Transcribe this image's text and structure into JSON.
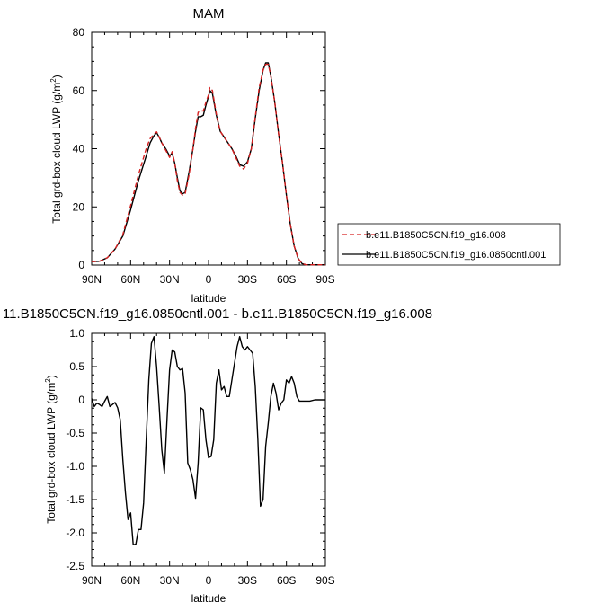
{
  "chart_data": [
    {
      "type": "line",
      "title": "MAM",
      "xlabel": "latitude",
      "ylabel": "Total grd-box cloud LWP (g/m²)",
      "ylabel_main": "Total grd-box cloud LWP (g/m",
      "ylabel_sup": "2",
      "ylabel_close": ")",
      "xlim": [
        90,
        -90
      ],
      "ylim": [
        0,
        80
      ],
      "xticks": [
        90,
        60,
        30,
        0,
        -30,
        -60,
        -90
      ],
      "xtick_labels": [
        "90N",
        "60N",
        "30N",
        "0",
        "30S",
        "60S",
        "90S"
      ],
      "yticks": [
        0,
        20,
        40,
        60,
        80
      ],
      "ytick_labels": [
        "0",
        "20",
        "40",
        "60",
        "80"
      ],
      "grid": false,
      "legend_position": "right",
      "series": [
        {
          "name": "b.e11.B1850C5CN.f19_g16.008",
          "color": "#d62020",
          "dashed": true,
          "points": [
            [
              90,
              1.2
            ],
            [
              84,
              1.3
            ],
            [
              78,
              2.5
            ],
            [
              72,
              5.5
            ],
            [
              66,
              10.5
            ],
            [
              60,
              20.5
            ],
            [
              54,
              31
            ],
            [
              48,
              40
            ],
            [
              45,
              43.5
            ],
            [
              42,
              45
            ],
            [
              40,
              45.8
            ],
            [
              38,
              44
            ],
            [
              36,
              42
            ],
            [
              33,
              39.5
            ],
            [
              30,
              37
            ],
            [
              28,
              39
            ],
            [
              26,
              35
            ],
            [
              24,
              29
            ],
            [
              22,
              25
            ],
            [
              20,
              24
            ],
            [
              18,
              24.5
            ],
            [
              15,
              31
            ],
            [
              12,
              40
            ],
            [
              10,
              47
            ],
            [
              8,
              52.5
            ],
            [
              6,
              53
            ],
            [
              4,
              53
            ],
            [
              2,
              56
            ],
            [
              0,
              58.5
            ],
            [
              -1,
              61
            ],
            [
              -3,
              60
            ],
            [
              -6,
              52
            ],
            [
              -9,
              46
            ],
            [
              -12,
              44
            ],
            [
              -15,
              42
            ],
            [
              -18,
              40
            ],
            [
              -21,
              37
            ],
            [
              -24,
              34
            ],
            [
              -27,
              33
            ],
            [
              -30,
              35
            ],
            [
              -33,
              40
            ],
            [
              -36,
              51
            ],
            [
              -39,
              61
            ],
            [
              -42,
              67
            ],
            [
              -44,
              69
            ],
            [
              -46,
              69
            ],
            [
              -48,
              65
            ],
            [
              -51,
              56
            ],
            [
              -54,
              45
            ],
            [
              -57,
              35
            ],
            [
              -60,
              24
            ],
            [
              -63,
              14
            ],
            [
              -66,
              6.5
            ],
            [
              -69,
              2.3
            ],
            [
              -72,
              0.5
            ],
            [
              -75,
              0.1
            ],
            [
              -90,
              0.1
            ]
          ]
        },
        {
          "name": "b.e11.B1850C5CN.f19_g16.0850cntl.001",
          "color": "#000000",
          "dashed": false,
          "points": [
            [
              90,
              1.2
            ],
            [
              84,
              1.3
            ],
            [
              78,
              2.5
            ],
            [
              72,
              5.5
            ],
            [
              66,
              10
            ],
            [
              60,
              19
            ],
            [
              54,
              29
            ],
            [
              48,
              37.5
            ],
            [
              45,
              42
            ],
            [
              42,
              44.5
            ],
            [
              40,
              45.5
            ],
            [
              38,
              44
            ],
            [
              36,
              42
            ],
            [
              33,
              40
            ],
            [
              30,
              37.5
            ],
            [
              28,
              38.5
            ],
            [
              26,
              35
            ],
            [
              24,
              30
            ],
            [
              22,
              25.5
            ],
            [
              20,
              24.5
            ],
            [
              18,
              25
            ],
            [
              15,
              32
            ],
            [
              12,
              40
            ],
            [
              10,
              46
            ],
            [
              8,
              51
            ],
            [
              6,
              51
            ],
            [
              4,
              51.5
            ],
            [
              2,
              55
            ],
            [
              0,
              58
            ],
            [
              -1,
              60
            ],
            [
              -3,
              59
            ],
            [
              -6,
              51.5
            ],
            [
              -9,
              46
            ],
            [
              -12,
              44
            ],
            [
              -15,
              42
            ],
            [
              -18,
              40
            ],
            [
              -21,
              37.5
            ],
            [
              -24,
              34.5
            ],
            [
              -27,
              34
            ],
            [
              -30,
              35.5
            ],
            [
              -33,
              40
            ],
            [
              -36,
              50.5
            ],
            [
              -39,
              60
            ],
            [
              -42,
              67
            ],
            [
              -44,
              69.5
            ],
            [
              -46,
              69.5
            ],
            [
              -48,
              65
            ],
            [
              -51,
              56
            ],
            [
              -54,
              45
            ],
            [
              -57,
              35
            ],
            [
              -60,
              24
            ],
            [
              -63,
              14
            ],
            [
              -66,
              6.5
            ],
            [
              -69,
              2.3
            ],
            [
              -72,
              0.5
            ],
            [
              -75,
              0.1
            ],
            [
              -90,
              0.1
            ]
          ]
        }
      ]
    },
    {
      "type": "line",
      "title": "11.B1850C5CN.f19_g16.0850cntl.001 - b.e11.B1850C5CN.f19_g16.008",
      "xlabel": "latitude",
      "ylabel": "Total grd-box cloud LWP (g/m²)",
      "ylabel_main": "Total grd-box cloud LWP (g/m",
      "ylabel_sup": "2",
      "ylabel_close": ")",
      "xlim": [
        90,
        -90
      ],
      "ylim": [
        -2.5,
        1.0
      ],
      "xticks": [
        90,
        60,
        30,
        0,
        -30,
        -60,
        -90
      ],
      "xtick_labels": [
        "90N",
        "60N",
        "30N",
        "0",
        "30S",
        "60S",
        "90S"
      ],
      "yticks": [
        1.0,
        0.5,
        0,
        -0.5,
        -1.0,
        -1.5,
        -2.0,
        -2.5
      ],
      "ytick_labels": [
        "1.0",
        "0.5",
        "0",
        "-0.5",
        "-1.0",
        "-1.5",
        "-2.0",
        "-2.5"
      ],
      "grid": false,
      "series": [
        {
          "color": "#000000",
          "dashed": false,
          "points": [
            [
              90,
              0.02
            ],
            [
              88,
              -0.1
            ],
            [
              86,
              -0.05
            ],
            [
              84,
              -0.07
            ],
            [
              82,
              -0.1
            ],
            [
              80,
              -0.02
            ],
            [
              78,
              0.05
            ],
            [
              76,
              -0.1
            ],
            [
              74,
              -0.07
            ],
            [
              72,
              -0.04
            ],
            [
              70,
              -0.12
            ],
            [
              68,
              -0.3
            ],
            [
              66,
              -0.9
            ],
            [
              64,
              -1.4
            ],
            [
              62,
              -1.8
            ],
            [
              60,
              -1.7
            ],
            [
              58,
              -2.18
            ],
            [
              56,
              -2.17
            ],
            [
              54,
              -1.95
            ],
            [
              52,
              -1.95
            ],
            [
              50,
              -1.55
            ],
            [
              48,
              -0.6
            ],
            [
              46,
              0.3
            ],
            [
              44,
              0.85
            ],
            [
              42,
              0.95
            ],
            [
              40,
              0.5
            ],
            [
              38,
              -0.1
            ],
            [
              36,
              -0.75
            ],
            [
              34,
              -1.1
            ],
            [
              32,
              -0.3
            ],
            [
              30,
              0.45
            ],
            [
              28,
              0.75
            ],
            [
              26,
              0.72
            ],
            [
              24,
              0.5
            ],
            [
              22,
              0.45
            ],
            [
              20,
              0.47
            ],
            [
              18,
              0.1
            ],
            [
              16,
              -0.95
            ],
            [
              14,
              -1.05
            ],
            [
              12,
              -1.2
            ],
            [
              10,
              -1.48
            ],
            [
              8,
              -0.95
            ],
            [
              6,
              -0.12
            ],
            [
              4,
              -0.15
            ],
            [
              2,
              -0.6
            ],
            [
              0,
              -0.87
            ],
            [
              -2,
              -0.85
            ],
            [
              -4,
              -0.6
            ],
            [
              -6,
              0.25
            ],
            [
              -8,
              0.45
            ],
            [
              -10,
              0.15
            ],
            [
              -12,
              0.2
            ],
            [
              -14,
              0.05
            ],
            [
              -16,
              0.05
            ],
            [
              -18,
              0.3
            ],
            [
              -20,
              0.55
            ],
            [
              -22,
              0.8
            ],
            [
              -24,
              0.95
            ],
            [
              -26,
              0.8
            ],
            [
              -28,
              0.75
            ],
            [
              -30,
              0.8
            ],
            [
              -32,
              0.75
            ],
            [
              -34,
              0.7
            ],
            [
              -36,
              0.2
            ],
            [
              -38,
              -0.6
            ],
            [
              -40,
              -1.6
            ],
            [
              -42,
              -1.5
            ],
            [
              -44,
              -0.7
            ],
            [
              -46,
              -0.35
            ],
            [
              -48,
              0.05
            ],
            [
              -50,
              0.25
            ],
            [
              -52,
              0.1
            ],
            [
              -54,
              -0.15
            ],
            [
              -56,
              -0.05
            ],
            [
              -58,
              0.0
            ],
            [
              -60,
              0.3
            ],
            [
              -62,
              0.25
            ],
            [
              -64,
              0.35
            ],
            [
              -66,
              0.25
            ],
            [
              -68,
              0.05
            ],
            [
              -70,
              -0.02
            ],
            [
              -74,
              -0.02
            ],
            [
              -78,
              -0.02
            ],
            [
              -82,
              0.0
            ],
            [
              -90,
              0.0
            ]
          ]
        }
      ]
    }
  ]
}
